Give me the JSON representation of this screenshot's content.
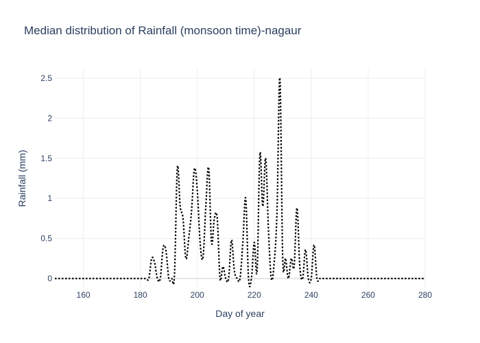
{
  "chart_data": {
    "type": "line",
    "title": "Median distribution of Rainfall (monsoon time)-nagaur",
    "xlabel": "Day of year",
    "ylabel": "Rainfall (mm)",
    "xlim": [
      150,
      280
    ],
    "ylim": [
      -0.12,
      2.62
    ],
    "xticks": [
      160,
      180,
      200,
      220,
      240,
      260,
      280
    ],
    "xtick_labels": [
      "160",
      "180",
      "200",
      "220",
      "240",
      "260",
      "280"
    ],
    "yticks": [
      0,
      0.5,
      1,
      1.5,
      2,
      2.5
    ],
    "ytick_labels": [
      "0",
      "0.5",
      "1",
      "1.5",
      "2",
      "2.5"
    ],
    "grid": true,
    "series": [
      {
        "color": "#000000",
        "dash": "dot",
        "x": [
          150,
          151,
          152,
          153,
          154,
          155,
          156,
          157,
          158,
          159,
          160,
          161,
          162,
          163,
          164,
          165,
          166,
          167,
          168,
          169,
          170,
          171,
          172,
          173,
          174,
          175,
          176,
          177,
          178,
          179,
          180,
          181,
          182,
          183,
          184,
          185,
          186,
          187,
          188,
          189,
          190,
          191,
          192,
          193,
          194,
          195,
          196,
          197,
          198,
          199,
          200,
          201,
          202,
          203,
          204,
          205,
          206,
          207,
          208,
          209,
          210,
          211,
          212,
          213,
          214,
          215,
          216,
          217,
          218,
          219,
          220,
          221,
          222,
          223,
          224,
          225,
          226,
          227,
          228,
          229,
          230,
          231,
          232,
          233,
          234,
          235,
          236,
          237,
          238,
          239,
          240,
          241,
          242,
          243,
          244,
          245,
          246,
          247,
          248,
          249,
          250,
          251,
          252,
          253,
          254,
          255,
          256,
          257,
          258,
          259,
          260,
          261,
          262,
          263,
          264,
          265,
          266,
          267,
          268,
          269,
          270,
          271,
          272,
          273,
          274,
          275,
          276,
          277,
          278,
          279,
          280
        ],
        "y": [
          0,
          0,
          0,
          0,
          0,
          0,
          0,
          0,
          0,
          0,
          0,
          0,
          0,
          0,
          0,
          0,
          0,
          0,
          0,
          0,
          0,
          0,
          0,
          0,
          0,
          0,
          0,
          0,
          0,
          0,
          0,
          0,
          0,
          0,
          0.25,
          0.2,
          0,
          0,
          0.38,
          0.35,
          0,
          0,
          0.05,
          1.38,
          0.9,
          0.75,
          0.25,
          0.5,
          0.85,
          1.37,
          1.1,
          0.45,
          0.26,
          0.9,
          1.38,
          0.45,
          0.75,
          0.75,
          0,
          0.15,
          0,
          0,
          0.48,
          0.1,
          0,
          0,
          0.45,
          1.0,
          0,
          0,
          0.45,
          0.1,
          1.56,
          0.9,
          1.5,
          0.6,
          0,
          0.2,
          0.85,
          2.5,
          0.25,
          0.25,
          0,
          0.25,
          0.15,
          0.88,
          0.15,
          0,
          0.36,
          0,
          0,
          0.42,
          0,
          0,
          0,
          0,
          0,
          0,
          0,
          0,
          0,
          0,
          0,
          0,
          0,
          0,
          0,
          0,
          0,
          0,
          0,
          0,
          0,
          0,
          0,
          0,
          0,
          0,
          0,
          0,
          0,
          0,
          0,
          0,
          0,
          0,
          0,
          0,
          0,
          0,
          0
        ]
      }
    ]
  }
}
